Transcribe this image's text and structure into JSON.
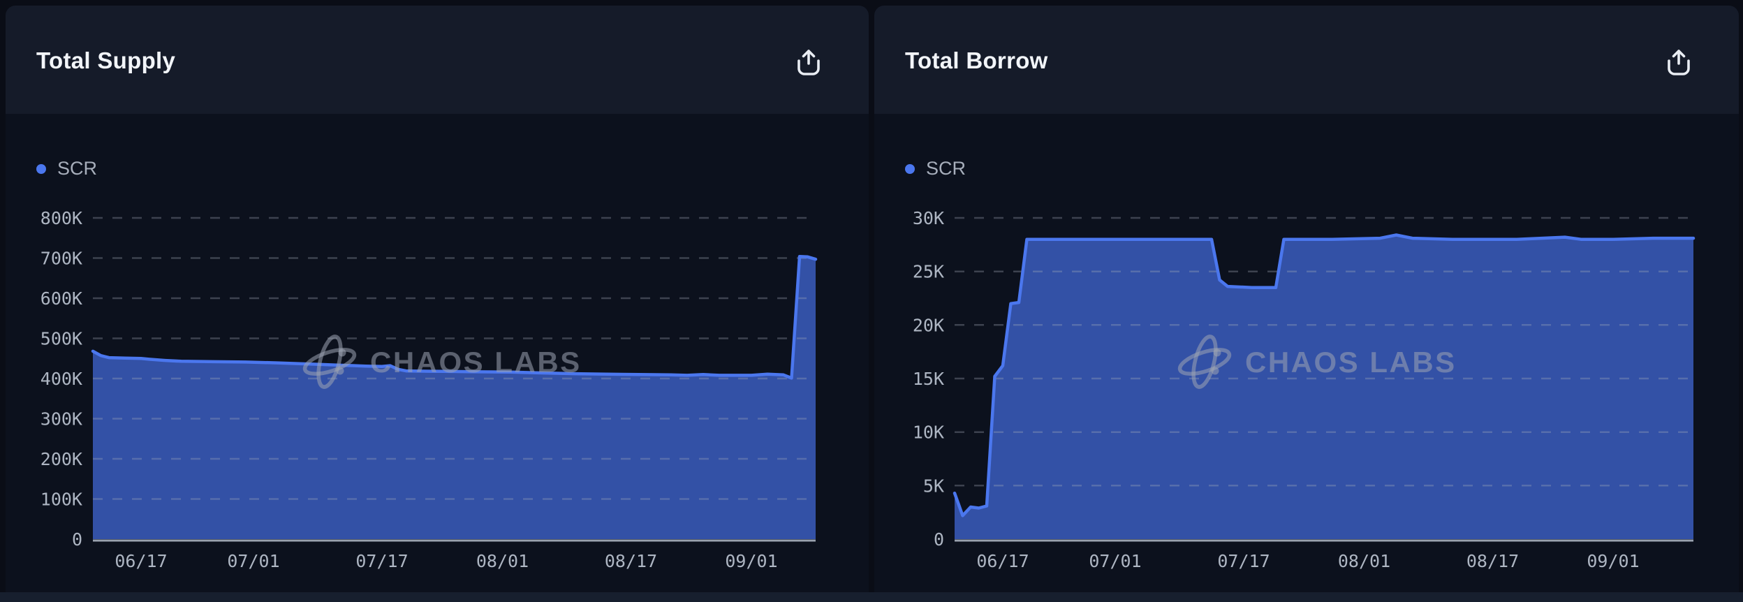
{
  "colors": {
    "page_bg": "#0a0d16",
    "chart_bg": "#0c111d",
    "card_header_bg": "#151b29",
    "title_text": "#f2f5f9",
    "axis_text": "#aeb6c3",
    "legend_text": "#a7aebb",
    "accent_line": "#4b77ee",
    "area_fill": "#3351a6",
    "legend_dot": "#4b77ee",
    "gridline": "rgba(164,172,187,0.32)",
    "axis_baseline": "#9aa2b0",
    "watermark": "rgba(156,164,178,0.55)"
  },
  "cards": [
    {
      "title": "Total Supply",
      "legend": {
        "label": "SCR"
      },
      "share_icon": "share-export",
      "watermark": "CHAOS LABS"
    },
    {
      "title": "Total Borrow",
      "legend": {
        "label": "SCR"
      },
      "share_icon": "share-export",
      "watermark": "CHAOS LABS"
    }
  ],
  "chart_data": [
    {
      "type": "area",
      "title": "Total Supply",
      "series_name": "SCR",
      "values_scale": "thousands",
      "ymax": 800,
      "grid_step": 100,
      "ylim": [
        0,
        800000
      ],
      "grid": "horizontal-dashed",
      "legend_position": "top-left",
      "y_ticks": [
        "0",
        "100K",
        "200K",
        "300K",
        "400K",
        "500K",
        "600K",
        "700K",
        "800K"
      ],
      "x_ticks": [
        "06/17",
        "07/01",
        "07/17",
        "08/01",
        "08/17",
        "09/01"
      ],
      "points": [
        [
          "06/11",
          468
        ],
        [
          "06/12",
          457
        ],
        [
          "06/13",
          452
        ],
        [
          "06/15",
          451
        ],
        [
          "06/17",
          450
        ],
        [
          "06/18",
          448
        ],
        [
          "06/20",
          445
        ],
        [
          "06/22",
          443
        ],
        [
          "06/26",
          442
        ],
        [
          "06/30",
          441
        ],
        [
          "07/04",
          439
        ],
        [
          "07/08",
          436
        ],
        [
          "07/12",
          433
        ],
        [
          "07/15",
          431
        ],
        [
          "07/17",
          430
        ],
        [
          "07/18",
          432
        ],
        [
          "07/19",
          423
        ],
        [
          "07/20",
          419
        ],
        [
          "07/23",
          418
        ],
        [
          "07/28",
          417
        ],
        [
          "08/02",
          416
        ],
        [
          "08/06",
          414
        ],
        [
          "08/10",
          412
        ],
        [
          "08/14",
          411
        ],
        [
          "08/18",
          410
        ],
        [
          "08/22",
          409
        ],
        [
          "08/24",
          408
        ],
        [
          "08/26",
          410
        ],
        [
          "08/28",
          408
        ],
        [
          "09/01",
          408
        ],
        [
          "09/03",
          411
        ],
        [
          "09/05",
          409
        ],
        [
          "09/06",
          401
        ],
        [
          "09/07",
          704
        ],
        [
          "09/08",
          703
        ],
        [
          "09/09",
          697
        ]
      ]
    },
    {
      "type": "area",
      "title": "Total Borrow",
      "series_name": "SCR",
      "values_scale": "thousands",
      "ymax": 30,
      "grid_step": 5,
      "ylim": [
        0,
        30000
      ],
      "grid": "horizontal-dashed",
      "legend_position": "top-left",
      "y_ticks": [
        "0",
        "5K",
        "10K",
        "15K",
        "20K",
        "25K",
        "30K"
      ],
      "x_ticks": [
        "06/17",
        "07/01",
        "07/17",
        "08/01",
        "08/17",
        "09/01"
      ],
      "points": [
        [
          "06/11",
          4.3
        ],
        [
          "06/12",
          2.2
        ],
        [
          "06/13",
          3.0
        ],
        [
          "06/14",
          2.9
        ],
        [
          "06/15",
          3.1
        ],
        [
          "06/16",
          15.2
        ],
        [
          "06/17",
          16.2
        ],
        [
          "06/18",
          22.0
        ],
        [
          "06/19",
          22.1
        ],
        [
          "06/20",
          28.0
        ],
        [
          "06/25",
          28.0
        ],
        [
          "07/01",
          28.0
        ],
        [
          "07/08",
          28.0
        ],
        [
          "07/13",
          28.0
        ],
        [
          "07/14",
          24.2
        ],
        [
          "07/15",
          23.6
        ],
        [
          "07/18",
          23.5
        ],
        [
          "07/21",
          23.5
        ],
        [
          "07/22",
          28.0
        ],
        [
          "07/28",
          28.0
        ],
        [
          "08/03",
          28.1
        ],
        [
          "08/05",
          28.4
        ],
        [
          "08/07",
          28.1
        ],
        [
          "08/12",
          28.0
        ],
        [
          "08/20",
          28.0
        ],
        [
          "08/26",
          28.2
        ],
        [
          "08/28",
          28.0
        ],
        [
          "09/01",
          28.0
        ],
        [
          "09/06",
          28.1
        ],
        [
          "09/11",
          28.1
        ]
      ]
    }
  ]
}
